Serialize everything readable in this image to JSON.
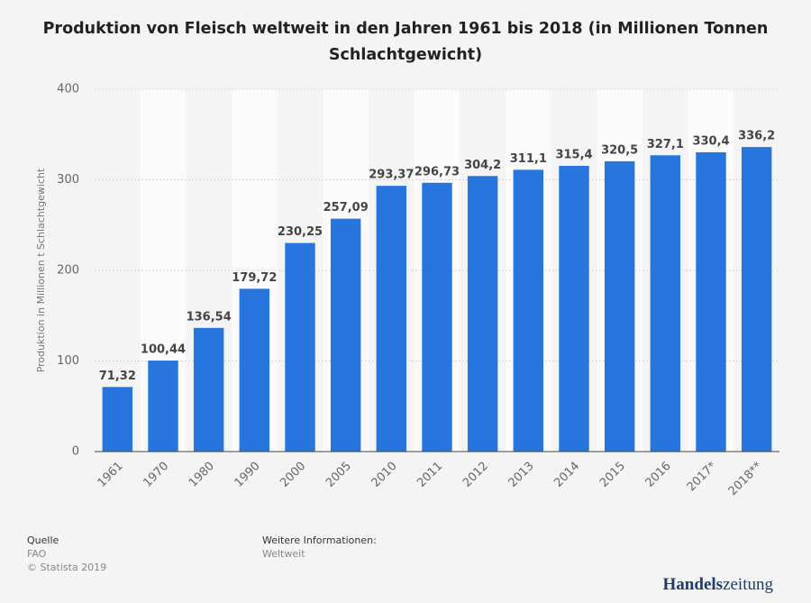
{
  "chart_data": {
    "type": "bar",
    "title": "Produktion von Fleisch weltweit in den Jahren 1961 bis 2018 (in Millionen Tonnen Schlachtgewicht)",
    "y_label": "Produktion in Millionen t Schlachtgewicht",
    "categories": [
      "1961",
      "1970",
      "1980",
      "1990",
      "2000",
      "2005",
      "2010",
      "2011",
      "2012",
      "2013",
      "2014",
      "2015",
      "2016",
      "2017*",
      "2018**"
    ],
    "values": [
      71.32,
      100.44,
      136.54,
      179.72,
      230.25,
      257.09,
      293.37,
      296.73,
      304.2,
      311.1,
      315.4,
      320.5,
      327.1,
      330.4,
      336.2
    ],
    "value_labels": [
      "71,32",
      "100,44",
      "136,54",
      "179,72",
      "230,25",
      "257,09",
      "293,37",
      "296,73",
      "304,2",
      "311,1",
      "315,4",
      "320,5",
      "327,1",
      "330,4",
      "336,2"
    ],
    "color": "#2876dd",
    "ylim": [
      0,
      400
    ],
    "yticks": [
      0,
      100,
      200,
      300,
      400
    ],
    "grid": true
  },
  "footer": {
    "source_heading": "Quelle",
    "source": "FAO",
    "copyright": "© Statista 2019",
    "info_heading": "Weitere Informationen:",
    "info": "Weltweit"
  },
  "brand": {
    "part1": "Handels",
    "part2": "zeitung"
  }
}
